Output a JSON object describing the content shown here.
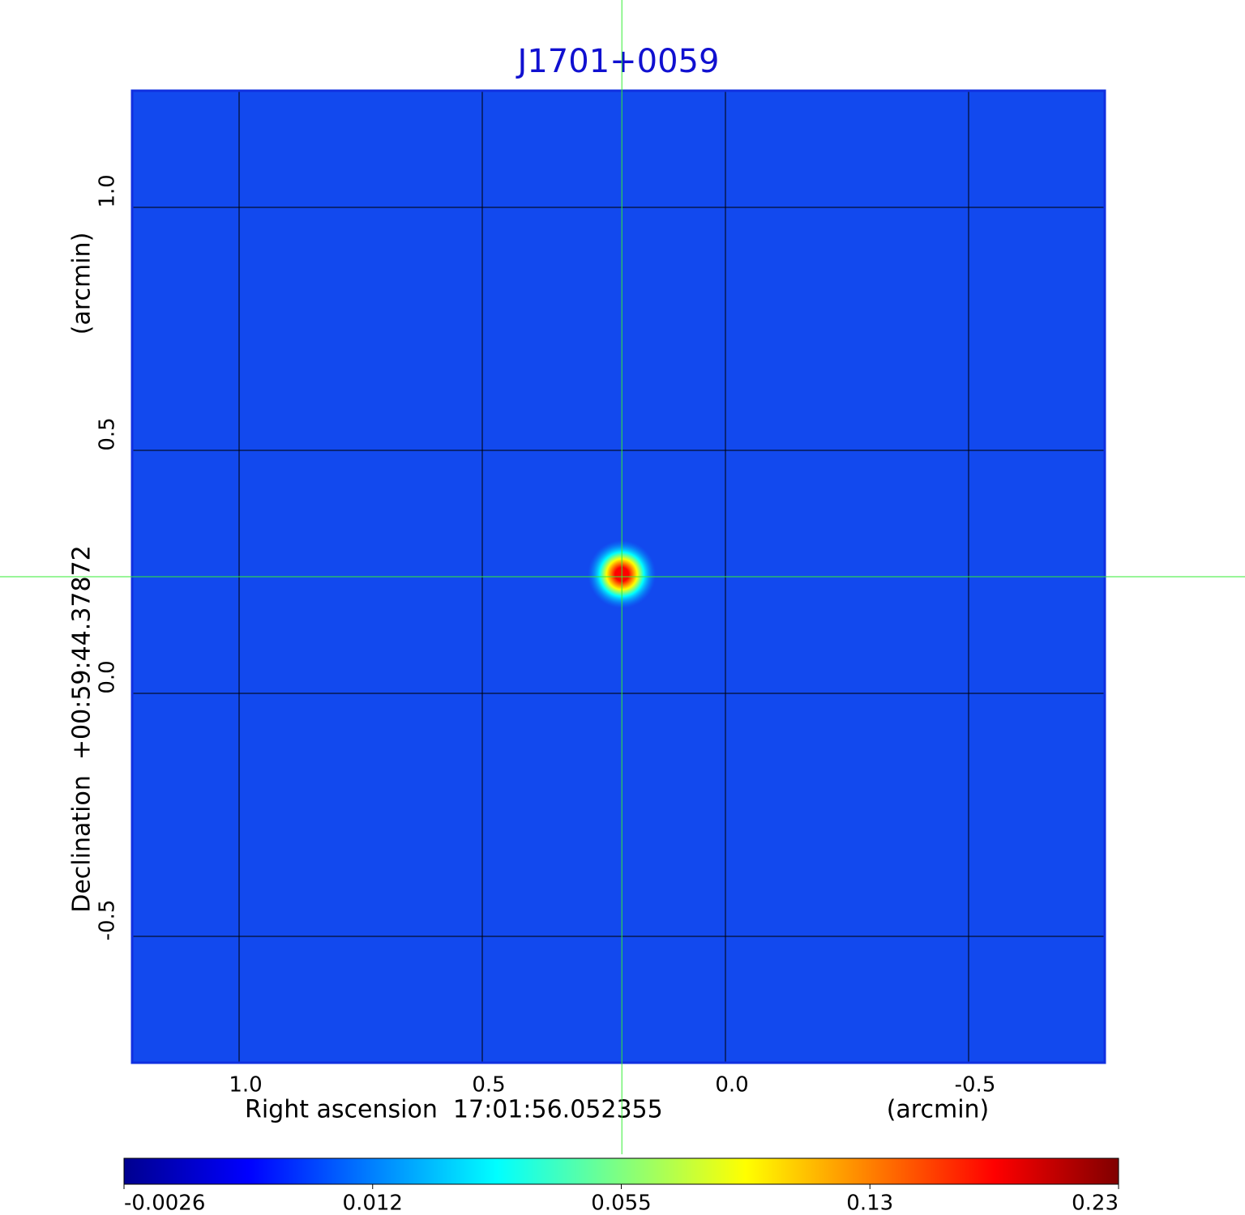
{
  "chart_data": {
    "type": "image",
    "title": "J1701+0059",
    "xlabel": "Right ascension  17:01:56.052355",
    "xunit": "(arcmin)",
    "ylabel": "Declination  +00:59:44.37872",
    "yunit": "(arcmin)",
    "xlim": [
      1.22,
      -0.78
    ],
    "ylim": [
      -0.76,
      1.24
    ],
    "xticks": [
      {
        "value": 1,
        "label": "1.0"
      },
      0.5,
      {
        "value": 0,
        "label": "0.0"
      },
      -0.5
    ],
    "yticks": [
      {
        "value": 1,
        "label": "1.0"
      },
      0.5,
      {
        "value": 0,
        "label": "0.0"
      },
      -0.5
    ],
    "grid": true,
    "image_color": "#1249ee",
    "crosshair": {
      "x": 0.213,
      "y": 0.24,
      "color": "#33ee33"
    },
    "source": {
      "x": 0.213,
      "y": 0.245,
      "peak": 0.23
    },
    "colorbar": {
      "ticks": [
        -0.0026,
        0.012,
        0.055,
        0.13,
        0.23
      ],
      "colors": [
        "#00008f",
        "#0000ff",
        "#0080ff",
        "#00ffff",
        "#80ff80",
        "#ffff00",
        "#ff8000",
        "#ff0000",
        "#800000"
      ]
    }
  }
}
